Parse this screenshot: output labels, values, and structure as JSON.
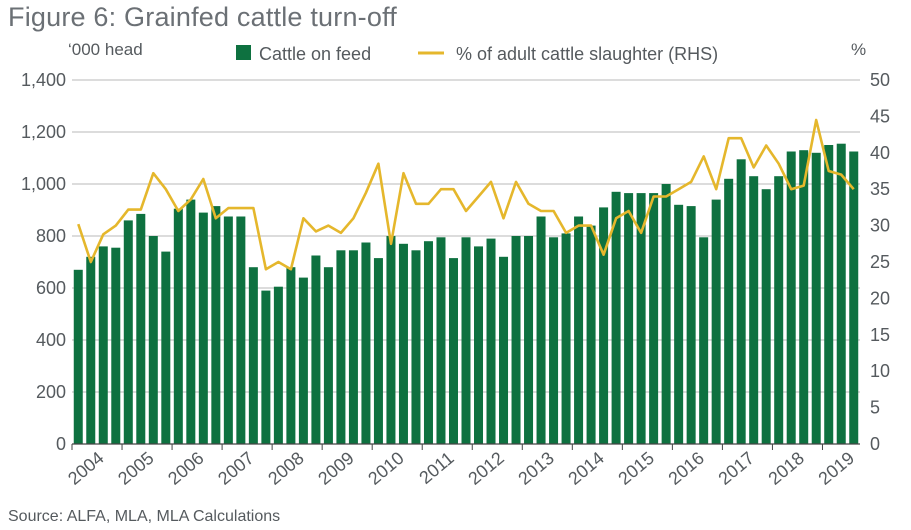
{
  "title": "Figure 6: Grainfed cattle turn-off",
  "source": "Source: ALFA, MLA, MLA Calculations",
  "chart_data": {
    "type": "bar+line",
    "title": "Figure 6: Grainfed cattle turn-off",
    "ylabel_left": "‘000 head",
    "ylabel_right": "%",
    "ylim_left": [
      0,
      1400
    ],
    "ylim_right": [
      0,
      50
    ],
    "yticks_left": [
      "0",
      "200",
      "400",
      "600",
      "800",
      "1,000",
      "1,200",
      "1,400"
    ],
    "yticks_right": [
      "0",
      "5",
      "10",
      "15",
      "20",
      "25",
      "30",
      "35",
      "40",
      "45",
      "50"
    ],
    "year_labels": [
      "2004",
      "2005",
      "2006",
      "2007",
      "2008",
      "2009",
      "2010",
      "2011",
      "2012",
      "2013",
      "2014",
      "2015",
      "2016",
      "2017",
      "2018",
      "2019"
    ],
    "grid": true,
    "legend_position": "top",
    "colors": {
      "bars": "#0e7140",
      "line": "#e5b72c",
      "grid": "#b9b9b9"
    },
    "series": [
      {
        "name": "Cattle on feed",
        "kind": "bar",
        "axis": "left",
        "values": [
          670,
          720,
          760,
          755,
          860,
          885,
          800,
          740,
          905,
          940,
          890,
          915,
          875,
          875,
          680,
          590,
          605,
          680,
          640,
          725,
          680,
          745,
          745,
          775,
          715,
          800,
          770,
          745,
          780,
          795,
          715,
          795,
          760,
          790,
          720,
          800,
          800,
          875,
          795,
          810,
          875,
          840,
          910,
          970,
          965,
          965,
          965,
          1000,
          920,
          915,
          795,
          940,
          1020,
          1095,
          1030,
          980,
          1030,
          1125,
          1130,
          1120,
          1150,
          1155,
          1125
        ]
      },
      {
        "name": "% of adult cattle slaughter (RHS)",
        "kind": "line",
        "axis": "right",
        "values": [
          30.2,
          25.0,
          28.8,
          30.0,
          32.2,
          32.2,
          37.2,
          35.0,
          32.0,
          33.6,
          36.4,
          31.0,
          32.4,
          32.4,
          32.4,
          24.0,
          25.0,
          24.0,
          31.0,
          29.2,
          30.0,
          29.0,
          31.0,
          34.5,
          38.5,
          27.5,
          37.2,
          33.0,
          33.0,
          35.0,
          35.0,
          32.0,
          34.0,
          36.0,
          31.0,
          36.0,
          33.0,
          32.0,
          32.0,
          29.0,
          30.0,
          30.0,
          26.0,
          31.0,
          32.0,
          29.0,
          34.0,
          34.0,
          35.0,
          36.0,
          39.5,
          35.0,
          42.0,
          42.0,
          38.0,
          41.0,
          38.5,
          35.0,
          35.5,
          44.5,
          37.5,
          37.0,
          35.0
        ]
      }
    ]
  }
}
